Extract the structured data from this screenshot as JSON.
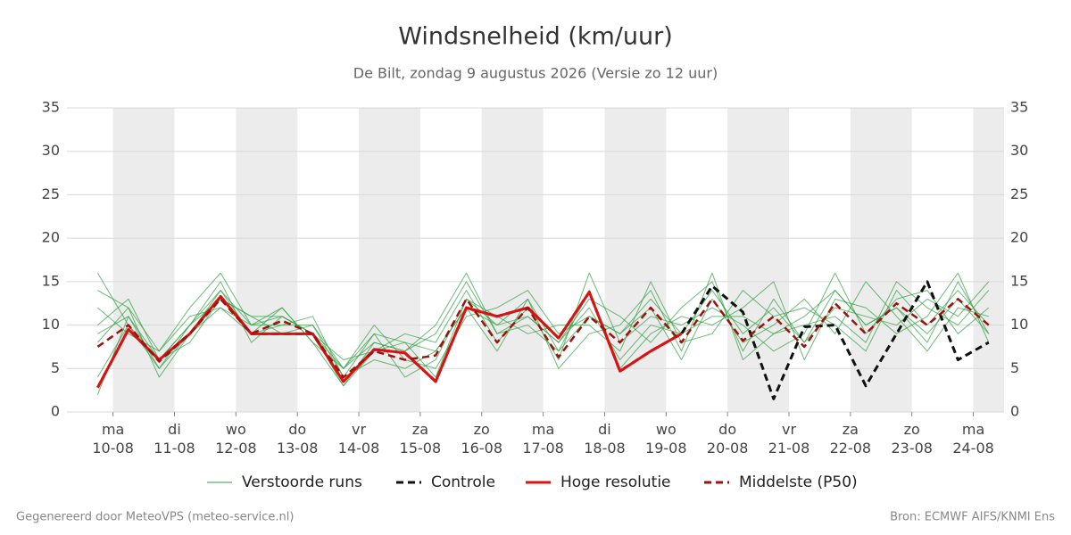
{
  "chart_data": {
    "type": "line",
    "title": "Windsnelheid (km/uur)",
    "subtitle": "De Bilt, zondag  9 augustus 2026 (Versie zo 12 uur)",
    "footer_left": "Gegenereerd door MeteoVPS (meteo-service.nl)",
    "footer_right": "Bron: ECMWF AIFS/KNMI Ens",
    "x": [
      -6,
      6,
      18,
      30,
      42,
      54,
      66,
      78,
      90,
      102,
      114,
      126,
      138,
      150,
      162,
      174,
      186,
      198,
      210,
      222,
      234,
      246,
      258,
      270,
      282,
      294,
      306,
      318,
      330,
      342
    ],
    "xlim": [
      -18,
      348
    ],
    "xticks": [
      {
        "value": 0,
        "label": "ma 10-08"
      },
      {
        "value": 24,
        "label": "di 11-08"
      },
      {
        "value": 48,
        "label": "wo 12-08"
      },
      {
        "value": 72,
        "label": "do 13-08"
      },
      {
        "value": 96,
        "label": "vr 14-08"
      },
      {
        "value": 120,
        "label": "za 15-08"
      },
      {
        "value": 144,
        "label": "zo 16-08"
      },
      {
        "value": 168,
        "label": "ma 17-08"
      },
      {
        "value": 192,
        "label": "di 18-08"
      },
      {
        "value": 216,
        "label": "wo 19-08"
      },
      {
        "value": 240,
        "label": "do 20-08"
      },
      {
        "value": 264,
        "label": "vr 21-08"
      },
      {
        "value": 288,
        "label": "za 22-08"
      },
      {
        "value": 312,
        "label": "zo 23-08"
      },
      {
        "value": 336,
        "label": "ma 24-08"
      }
    ],
    "ylim": [
      0,
      35
    ],
    "yticks": [
      0,
      5,
      10,
      15,
      20,
      25,
      30,
      35
    ],
    "grid": true,
    "ensemble": {
      "name": "Verstoorde runs",
      "color": "#2e9e3e",
      "runs": [
        [
          9,
          11,
          6,
          10,
          14,
          10,
          11,
          9,
          5,
          9,
          8,
          4,
          13,
          10,
          11,
          8,
          12,
          6,
          10,
          9,
          14,
          9,
          12,
          8,
          14,
          10,
          12,
          9,
          13,
          9
        ],
        [
          4,
          10,
          5,
          9,
          12,
          9,
          10,
          10,
          4,
          6,
          5,
          7,
          12,
          7,
          13,
          5,
          9,
          10,
          14,
          7,
          16,
          6,
          9,
          10,
          11,
          8,
          15,
          12,
          10,
          14
        ],
        [
          14,
          12,
          7,
          12,
          16,
          10,
          12,
          8,
          3,
          8,
          7,
          9,
          15,
          9,
          10,
          7,
          14,
          5,
          9,
          11,
          10,
          12,
          15,
          6,
          13,
          12,
          9,
          11,
          16,
          8
        ],
        [
          10,
          13,
          6,
          8,
          13,
          11,
          9,
          10,
          5,
          10,
          6,
          5,
          11,
          12,
          14,
          9,
          11,
          9,
          12,
          6,
          13,
          8,
          10,
          13,
          9,
          15,
          11,
          7,
          12,
          11
        ],
        [
          2,
          11,
          5,
          10,
          15,
          8,
          11,
          9,
          6,
          7,
          9,
          8,
          14,
          8,
          12,
          6,
          16,
          8,
          11,
          10,
          12,
          10,
          7,
          9,
          16,
          9,
          13,
          14,
          9,
          12
        ],
        [
          12,
          9,
          7,
          11,
          12,
          10,
          10,
          11,
          4,
          9,
          4,
          6,
          13,
          11,
          9,
          10,
          10,
          7,
          15,
          8,
          9,
          14,
          11,
          12,
          10,
          7,
          14,
          10,
          14,
          10
        ],
        [
          8,
          12,
          4,
          9,
          14,
          9,
          12,
          8,
          5,
          8,
          7,
          10,
          16,
          9,
          11,
          8,
          13,
          11,
          8,
          12,
          15,
          7,
          13,
          8,
          12,
          11,
          10,
          13,
          11,
          15
        ],
        [
          16,
          10,
          6,
          10,
          13,
          11,
          11,
          9,
          3,
          7,
          8,
          7,
          12,
          10,
          13,
          7,
          11,
          9,
          13,
          9,
          11,
          11,
          9,
          11,
          14,
          10,
          12,
          8,
          15,
          9
        ]
      ]
    },
    "series": [
      {
        "name": "Controle",
        "color": "#111111",
        "dash": true,
        "values": [
          2.8,
          9.5,
          6,
          9,
          13.3,
          9,
          9,
          9,
          3.5,
          7.2,
          6.8,
          3.5,
          12,
          11,
          12,
          8.5,
          13.8,
          4.7,
          7,
          9,
          14.5,
          11.5,
          1.5,
          9.8,
          10,
          3,
          9,
          15,
          6,
          8
        ]
      },
      {
        "name": "Hoge resolutie",
        "color": "#dd1111",
        "dash": false,
        "values": [
          2.8,
          9.5,
          6,
          9,
          13.3,
          9,
          9,
          9,
          3.5,
          7.2,
          6.8,
          3.5,
          12,
          11,
          12,
          8.5,
          13.8,
          4.7,
          7,
          9,
          null,
          null,
          null,
          null,
          null,
          null,
          null,
          null,
          null,
          null
        ]
      },
      {
        "name": "Middelste (P50)",
        "color": "#a01010",
        "dash": true,
        "values": [
          7.5,
          10,
          5.8,
          9,
          13,
          9,
          10.5,
          9,
          4,
          7,
          6,
          6.5,
          13,
          8,
          12,
          6.3,
          11,
          8,
          12,
          8,
          13,
          8.2,
          11,
          7.5,
          12.5,
          9,
          12.5,
          10,
          13,
          10
        ]
      }
    ]
  }
}
